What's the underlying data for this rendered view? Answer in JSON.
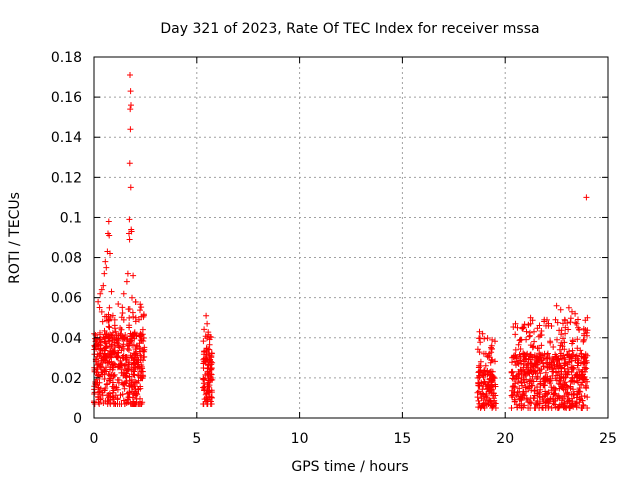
{
  "chart_data": {
    "type": "scatter",
    "title": "Day 321 of 2023, Rate Of TEC Index for receiver mssa",
    "xlabel": "GPS time / hours",
    "ylabel": "ROTI / TECUs",
    "xlim": [
      0,
      25
    ],
    "ylim": [
      0,
      0.18
    ],
    "xticks": [
      0,
      5,
      10,
      15,
      20,
      25
    ],
    "xtick_labels": [
      "0",
      "5",
      "10",
      "15",
      "20",
      "25"
    ],
    "yticks": [
      0,
      0.02,
      0.04,
      0.06,
      0.08,
      0.1,
      0.12,
      0.14,
      0.16,
      0.18
    ],
    "ytick_labels": [
      "0",
      "0.02",
      "0.04",
      "0.06",
      "0.08",
      "0.1",
      "0.12",
      "0.14",
      "0.16",
      "0.18"
    ],
    "grid": true,
    "marker": "+",
    "color": "#ff0000",
    "series": [
      {
        "name": "ROTI",
        "points": [
          [
            1.75,
            0.171
          ],
          [
            1.78,
            0.163
          ],
          [
            1.8,
            0.156
          ],
          [
            1.76,
            0.154
          ],
          [
            1.77,
            0.144
          ],
          [
            1.74,
            0.127
          ],
          [
            1.79,
            0.115
          ],
          [
            1.72,
            0.099
          ],
          [
            1.81,
            0.094
          ],
          [
            1.7,
            0.092
          ],
          [
            1.83,
            0.093
          ],
          [
            1.73,
            0.089
          ],
          [
            0.72,
            0.098
          ],
          [
            0.68,
            0.092
          ],
          [
            0.74,
            0.091
          ],
          [
            0.65,
            0.083
          ],
          [
            0.78,
            0.082
          ],
          [
            0.55,
            0.078
          ],
          [
            0.6,
            0.075
          ],
          [
            0.5,
            0.072
          ],
          [
            0.45,
            0.066
          ],
          [
            0.38,
            0.064
          ],
          [
            0.3,
            0.062
          ],
          [
            0.2,
            0.058
          ],
          [
            0.85,
            0.063
          ],
          [
            1.65,
            0.072
          ],
          [
            1.9,
            0.071
          ],
          [
            1.6,
            0.068
          ],
          [
            1.45,
            0.062
          ],
          [
            1.85,
            0.06
          ],
          [
            23.95,
            0.11
          ],
          [
            5.45,
            0.051
          ],
          [
            5.5,
            0.047
          ],
          [
            24.0,
            0.05
          ],
          [
            18.75,
            0.043
          ],
          [
            18.9,
            0.042
          ],
          [
            20.5,
            0.047
          ],
          [
            20.6,
            0.045
          ],
          [
            22.5,
            0.056
          ],
          [
            22.7,
            0.054
          ],
          [
            23.1,
            0.055
          ],
          [
            23.25,
            0.053
          ],
          [
            23.4,
            0.052
          ],
          [
            23.6,
            0.044
          ],
          [
            21.9,
            0.049
          ],
          [
            22.1,
            0.046
          ],
          [
            21.4,
            0.043
          ],
          [
            23.8,
            0.038
          ],
          [
            19.35,
            0.036
          ],
          [
            19.2,
            0.031
          ],
          [
            20.8,
            0.039
          ],
          [
            21.2,
            0.041
          ]
        ],
        "clusters": [
          {
            "x_range": [
              0.0,
              2.45
            ],
            "y_low": 0.007,
            "y_high": 0.058,
            "y_center": 0.024,
            "count": 520
          },
          {
            "x_range": [
              5.3,
              5.75
            ],
            "y_low": 0.007,
            "y_high": 0.045,
            "y_center": 0.02,
            "count": 110
          },
          {
            "x_range": [
              18.65,
              19.55
            ],
            "y_low": 0.005,
            "y_high": 0.04,
            "y_center": 0.014,
            "count": 150
          },
          {
            "x_range": [
              20.3,
              24.0
            ],
            "y_low": 0.005,
            "y_high": 0.05,
            "y_center": 0.018,
            "count": 620
          }
        ]
      }
    ]
  }
}
